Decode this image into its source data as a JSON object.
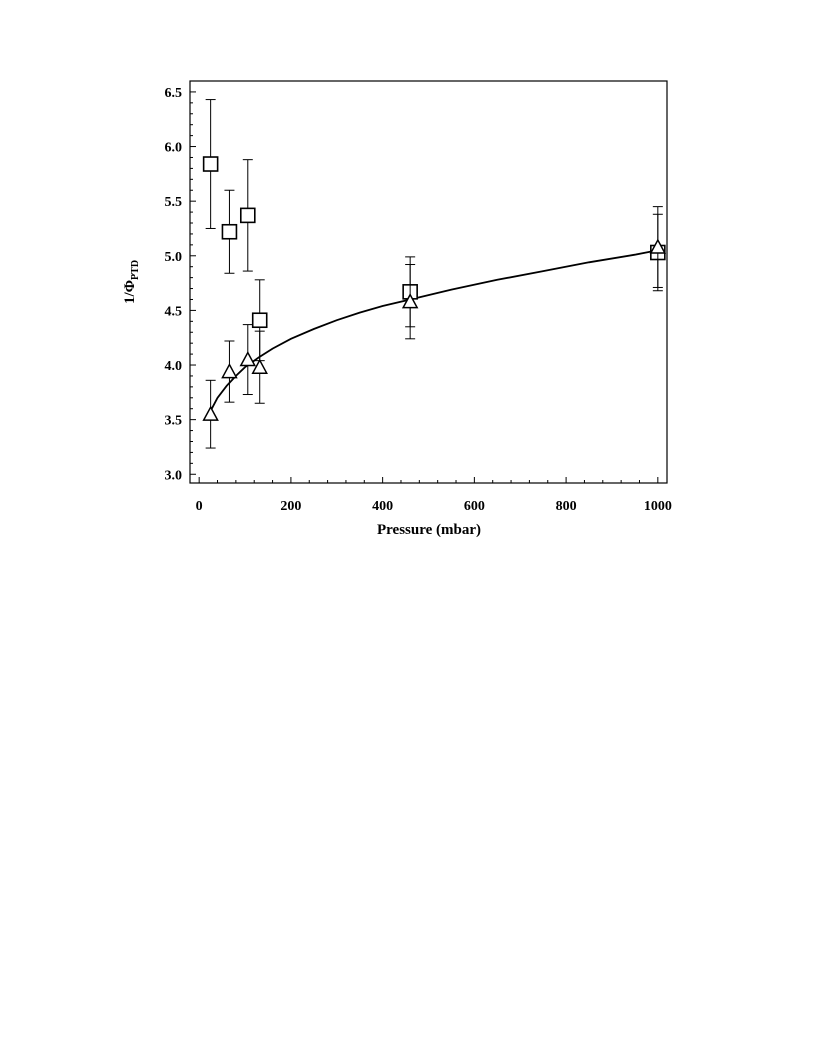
{
  "chart_data": {
    "type": "scatter",
    "xlabel": "Pressure (mbar)",
    "ylabel_main": "1/Φ",
    "ylabel_sub": "PTD",
    "xlim": [
      -20,
      1020
    ],
    "ylim": [
      2.92,
      6.6
    ],
    "xticks": [
      0,
      200,
      400,
      600,
      800,
      1000
    ],
    "xtick_labels": [
      "0",
      "200",
      "400",
      "600",
      "800",
      "1000"
    ],
    "yticks": [
      3.0,
      3.5,
      4.0,
      4.5,
      5.0,
      5.5,
      6.0,
      6.5
    ],
    "ytick_labels": [
      "3.0",
      "3.5",
      "4.0",
      "4.5",
      "5.0",
      "5.5",
      "6.0",
      "6.5"
    ],
    "grid": false,
    "legend": "none",
    "series": [
      {
        "marker": "square",
        "points": [
          {
            "x": 25,
            "y": 5.84,
            "err": 0.59
          },
          {
            "x": 66,
            "y": 5.22,
            "err": 0.38
          },
          {
            "x": 106,
            "y": 5.37,
            "err": 0.51
          },
          {
            "x": 132,
            "y": 4.41,
            "err": 0.37
          },
          {
            "x": 460,
            "y": 4.67,
            "err": 0.32
          },
          {
            "x": 1000,
            "y": 5.03,
            "err": 0.35
          }
        ]
      },
      {
        "marker": "triangle",
        "points": [
          {
            "x": 25,
            "y": 3.55,
            "err": 0.31
          },
          {
            "x": 66,
            "y": 3.94,
            "err": 0.28
          },
          {
            "x": 106,
            "y": 4.05,
            "err": 0.32
          },
          {
            "x": 132,
            "y": 3.98,
            "err": 0.33
          },
          {
            "x": 460,
            "y": 4.58,
            "err": 0.34
          },
          {
            "x": 1000,
            "y": 5.08,
            "err": 0.37
          }
        ]
      }
    ],
    "fit_curve": {
      "x": [
        25,
        40,
        60,
        80,
        100,
        130,
        160,
        200,
        250,
        300,
        350,
        400,
        460,
        550,
        650,
        750,
        850,
        950,
        1000
      ],
      "y": [
        3.58,
        3.7,
        3.81,
        3.9,
        3.98,
        4.07,
        4.15,
        4.24,
        4.33,
        4.41,
        4.48,
        4.54,
        4.6,
        4.69,
        4.78,
        4.86,
        4.94,
        5.01,
        5.05
      ]
    }
  }
}
